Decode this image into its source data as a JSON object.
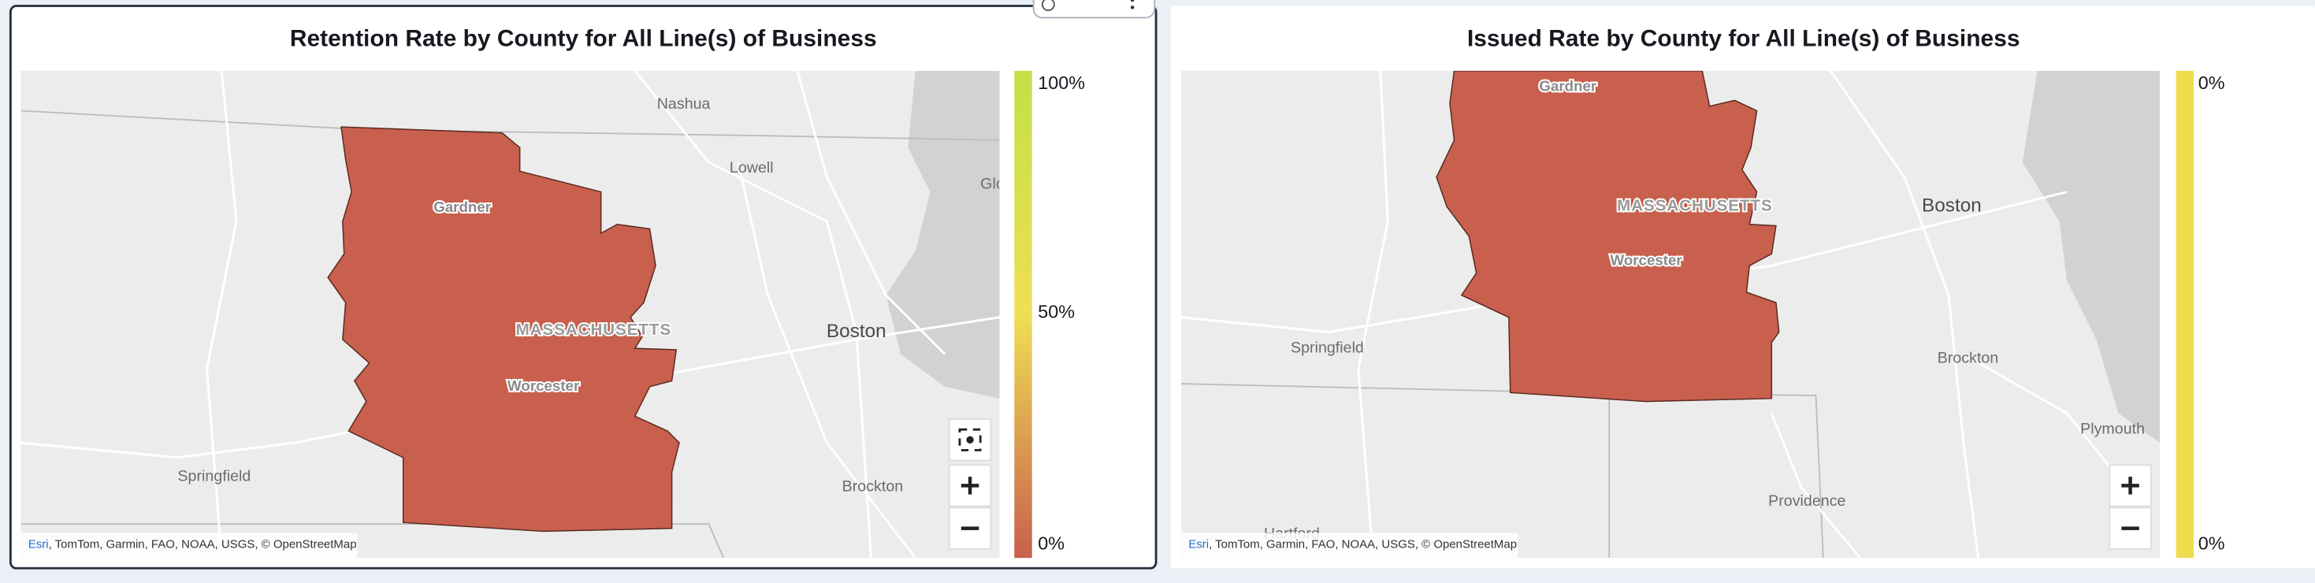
{
  "panels": [
    {
      "title": "Retention Rate by County for All Line(s) of Business",
      "map_labels": {
        "nashua": "Nashua",
        "lowell": "Lowell",
        "glo": "Glo",
        "boston": "Boston",
        "gardner": "Gardner",
        "state": "MASSACHUSETTS",
        "worcester": "Worcester",
        "springfield": "Springfield",
        "brockton": "Brockton"
      },
      "legend": {
        "top": "100%",
        "middle": "50%",
        "bottom": "0%"
      },
      "attribution": {
        "link": "Esri",
        "text": ", TomTom, Garmin, FAO, NOAA, USGS, © OpenStreetMap"
      }
    },
    {
      "title": "Issued Rate by County for All Line(s) of Business",
      "map_labels": {
        "gardner": "Gardner",
        "state": "MASSACHUSETTS",
        "worcester": "Worcester",
        "springfield": "Springfield",
        "boston": "Boston",
        "brockton": "Brockton",
        "plymouth": "Plymouth",
        "providence": "Providence",
        "hartford": "Hartford"
      },
      "legend": {
        "top": "0%",
        "bottom": "0%"
      },
      "attribution": {
        "link": "Esri",
        "text": ", TomTom, Garmin, FAO, NOAA, USGS, © OpenStreetMap"
      }
    }
  ]
}
